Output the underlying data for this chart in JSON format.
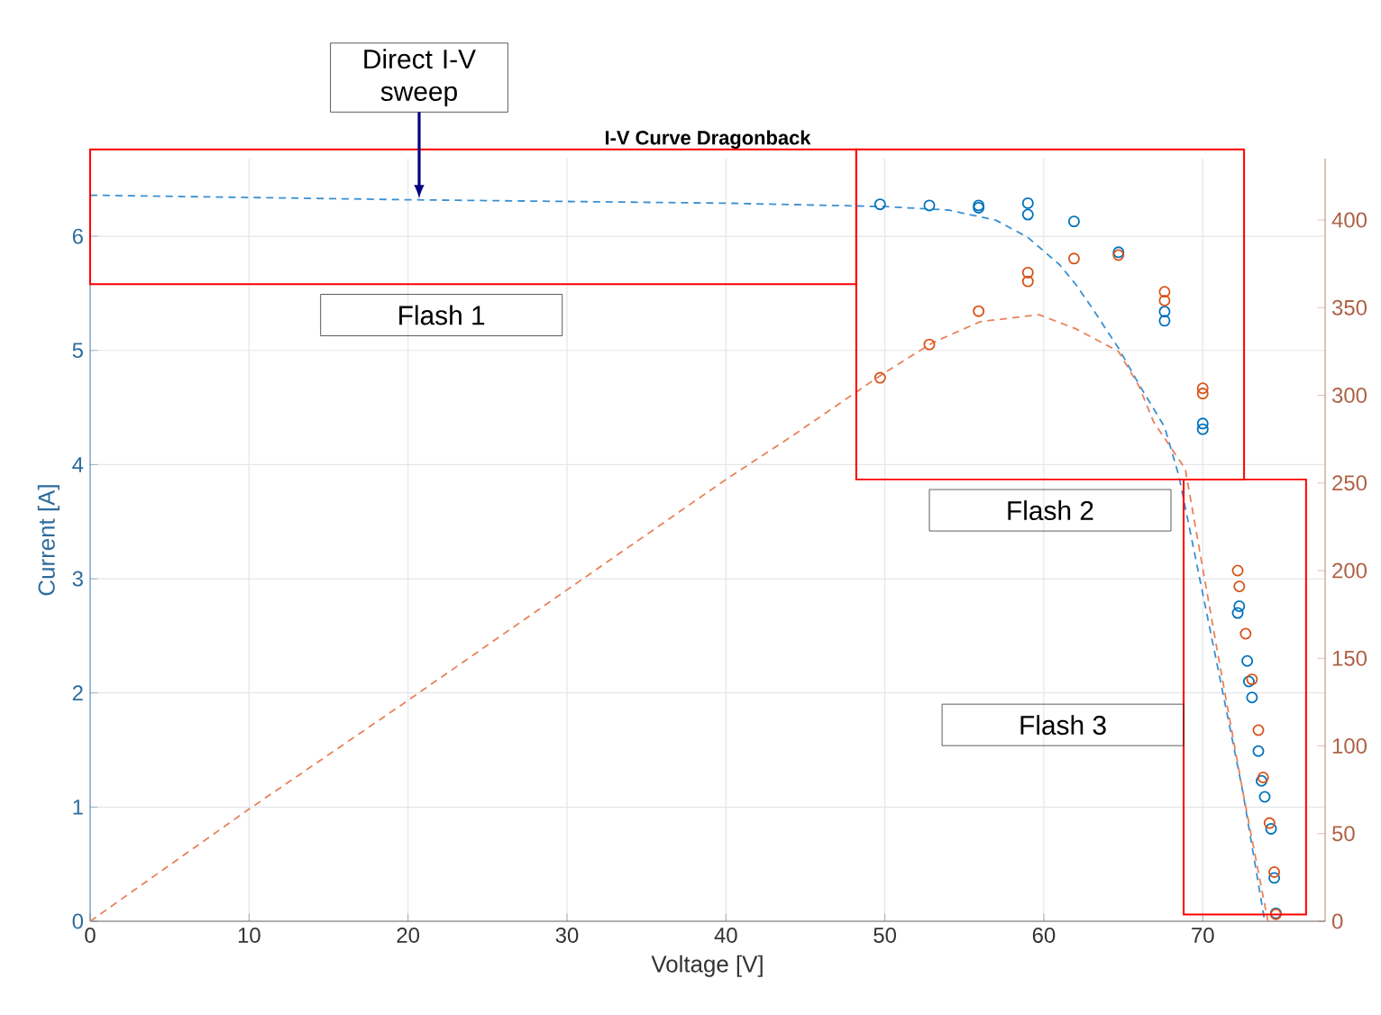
{
  "chart_data": {
    "type": "line",
    "title": "I-V Curve Dragonback",
    "xlabel": "Voltage [V]",
    "ylabel": "Current [A]",
    "xlim": [
      0,
      77.7
    ],
    "xticks": [
      0,
      10,
      20,
      30,
      40,
      50,
      60,
      70
    ],
    "ylim": [
      0,
      6.68
    ],
    "yticks": [
      0,
      1,
      2,
      3,
      4,
      5,
      6
    ],
    "y2lim": [
      0,
      435
    ],
    "y2ticks": [
      0,
      50,
      100,
      150,
      200,
      250,
      300,
      350,
      400
    ],
    "grid": true,
    "series": [
      {
        "color": "#3a8fd0",
        "line_style": "dashed",
        "marker": "none",
        "x": [
          0,
          20,
          40,
          50,
          54,
          57,
          59,
          61,
          62,
          63,
          64.7,
          66,
          67.6,
          68.5,
          70.7,
          72.5,
          73.9
        ],
        "values": [
          6.36,
          6.32,
          6.29,
          6.26,
          6.23,
          6.14,
          5.99,
          5.75,
          5.58,
          5.38,
          5.02,
          4.7,
          4.33,
          3.9,
          2.39,
          1.15,
          0
        ]
      },
      {
        "axis": "y2",
        "color": "#e8825a",
        "line_style": "dashed",
        "marker": "none",
        "x": [
          0,
          10,
          20,
          30,
          40,
          44.2,
          50,
          53,
          56,
          59.7,
          62,
          64.7,
          66,
          66.9,
          68.9,
          70.9,
          72.5,
          74.1
        ],
        "values": [
          0,
          64,
          126,
          189,
          252,
          277,
          313,
          330,
          342,
          346,
          338,
          325,
          305,
          285,
          258,
          155,
          75,
          0
        ]
      },
      {
        "type": "scatter",
        "color": "#0072bd",
        "marker": "circle",
        "x": [
          49.7,
          52.8,
          55.9,
          55.9,
          59.0,
          59.0,
          61.9,
          64.7,
          67.6,
          67.6,
          70.0,
          70.0,
          72.2,
          72.3,
          72.8,
          72.9,
          73.1,
          73.5,
          73.7,
          73.9,
          74.3,
          74.5,
          74.6
        ],
        "values": [
          6.28,
          6.27,
          6.27,
          6.25,
          6.29,
          6.19,
          6.13,
          5.86,
          5.34,
          5.26,
          4.36,
          4.31,
          2.7,
          2.76,
          2.28,
          2.1,
          1.96,
          1.49,
          1.23,
          1.09,
          0.81,
          0.38,
          0.07
        ]
      },
      {
        "type": "scatter",
        "axis": "y2",
        "color": "#d95319",
        "marker": "circle",
        "x": [
          49.7,
          52.8,
          55.9,
          59.0,
          59.0,
          61.9,
          64.7,
          67.6,
          67.6,
          70.0,
          70.0,
          72.2,
          72.3,
          72.7,
          73.1,
          73.5,
          73.8,
          74.2,
          74.5,
          74.6
        ],
        "values": [
          310,
          329,
          348,
          370,
          365,
          378,
          380,
          359,
          354,
          304,
          301,
          200,
          191,
          164,
          138,
          109,
          82,
          56,
          28,
          4
        ]
      }
    ],
    "annotations": [
      {
        "text": "Direct I-V sweep",
        "x": 20.7,
        "y": 6.33
      },
      "Flash 1",
      "Flash 2",
      "Flash 3"
    ]
  }
}
